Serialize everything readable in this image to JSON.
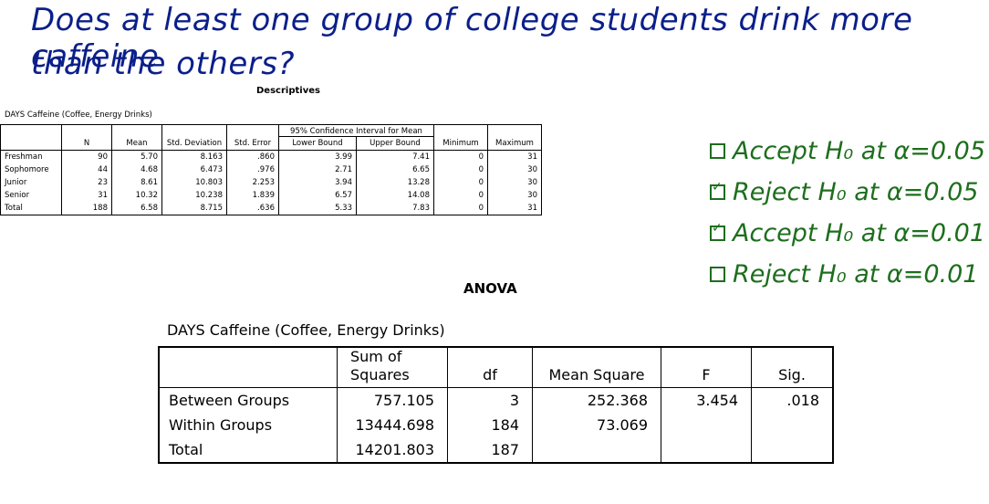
{
  "question": {
    "line1": "Does at least one group of college students drink more caffeine",
    "line2": "than the others?"
  },
  "descriptives": {
    "title": "Descriptives",
    "variable": "DAYS Caffeine (Coffee, Energy Drinks)",
    "headers": {
      "n": "N",
      "mean": "Mean",
      "std_dev": "Std. Deviation",
      "std_err": "Std. Error",
      "ci": "95% Confidence Interval for Mean",
      "lower": "Lower Bound",
      "upper": "Upper Bound",
      "min": "Minimum",
      "max": "Maximum"
    },
    "rows": [
      {
        "group": "Freshman",
        "n": "90",
        "mean": "5.70",
        "sd": "8.163",
        "se": ".860",
        "lower": "3.99",
        "upper": "7.41",
        "min": "0",
        "max": "31"
      },
      {
        "group": "Sophomore",
        "n": "44",
        "mean": "4.68",
        "sd": "6.473",
        "se": ".976",
        "lower": "2.71",
        "upper": "6.65",
        "min": "0",
        "max": "30"
      },
      {
        "group": "Junior",
        "n": "23",
        "mean": "8.61",
        "sd": "10.803",
        "se": "2.253",
        "lower": "3.94",
        "upper": "13.28",
        "min": "0",
        "max": "30"
      },
      {
        "group": "Senior",
        "n": "31",
        "mean": "10.32",
        "sd": "10.238",
        "se": "1.839",
        "lower": "6.57",
        "upper": "14.08",
        "min": "0",
        "max": "30"
      },
      {
        "group": "Total",
        "n": "188",
        "mean": "6.58",
        "sd": "8.715",
        "se": ".636",
        "lower": "5.33",
        "upper": "7.83",
        "min": "0",
        "max": "31"
      }
    ]
  },
  "anova": {
    "title": "ANOVA",
    "variable": "DAYS Caffeine (Coffee, Energy Drinks)",
    "headers": {
      "ss": "Sum of Squares",
      "df": "df",
      "ms": "Mean Square",
      "f": "F",
      "sig": "Sig."
    },
    "rows": [
      {
        "source": "Between Groups",
        "ss": "757.105",
        "df": "3",
        "ms": "252.368",
        "f": "3.454",
        "sig": ".018"
      },
      {
        "source": "Within Groups",
        "ss": "13444.698",
        "df": "184",
        "ms": "73.069",
        "f": "",
        "sig": ""
      },
      {
        "source": "Total",
        "ss": "14201.803",
        "df": "187",
        "ms": "",
        "f": "",
        "sig": ""
      }
    ]
  },
  "choices": [
    {
      "label": "Accept H₀ at α=0.05",
      "checked": false
    },
    {
      "label": "Reject H₀ at α=0.05",
      "checked": true
    },
    {
      "label": "Accept H₀ at α=0.01",
      "checked": true
    },
    {
      "label": "Reject H₀ at α=0.01",
      "checked": false
    }
  ]
}
